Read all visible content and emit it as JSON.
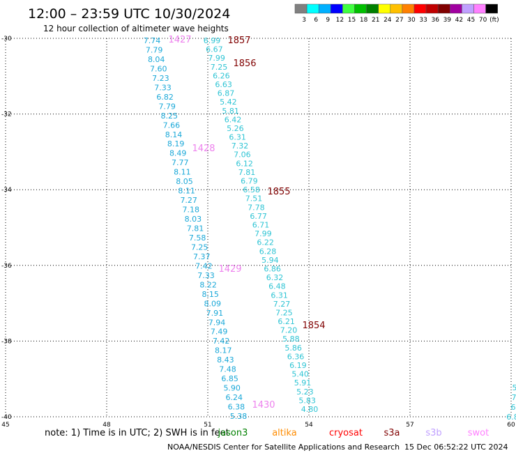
{
  "title": "12:00 – 23:59 UTC 10/30/2024",
  "subtitle": "12 hour collection of altimeter wave heights",
  "color_scale": {
    "unit": "(ft)",
    "colors": [
      "#808080",
      "#00ffff",
      "#00b0ff",
      "#0000ff",
      "#40ff40",
      "#00c000",
      "#008000",
      "#ffff00",
      "#ffc000",
      "#ff8000",
      "#ff0000",
      "#c00000",
      "#800000",
      "#a000a0",
      "#c0a0ff",
      "#ff80ff",
      "#000000"
    ],
    "labels": [
      "3",
      "6",
      "9",
      "12",
      "15",
      "18",
      "21",
      "24",
      "27",
      "30",
      "33",
      "36",
      "39",
      "42",
      "45",
      "70"
    ]
  },
  "map": {
    "x_axis": {
      "min": 45,
      "max": 60,
      "ticks": [
        "45",
        "48",
        "51",
        "54",
        "57",
        "60"
      ]
    },
    "y_axis": {
      "min": -40,
      "max": -30,
      "ticks": [
        "-30",
        "-32",
        "-34",
        "-36",
        "-38",
        "-40"
      ]
    }
  },
  "tracks": [
    {
      "values": [
        "7.74",
        "7.79",
        "8.04",
        "7.60",
        "7.23",
        "7.33",
        "6.82",
        "7.79",
        "8.25",
        "7.66",
        "8.14",
        "8.19",
        "8.49",
        "7.77",
        "8.11",
        "8.05",
        "8.11",
        "7.27",
        "7.18",
        "8.03",
        "7.81",
        "7.58",
        "7.25",
        "7.37",
        "7.42",
        "7.33",
        "8.22",
        "8.15",
        "8.09",
        "7.91",
        "7.94",
        "7.49",
        "7.42",
        "8.17",
        "8.43",
        "7.48",
        "6.85",
        "5.90",
        "6.24",
        "6.38",
        "5.38"
      ]
    },
    {
      "values": [
        "6.99",
        "6.67",
        "7.99",
        "7.25",
        "6.26",
        "6.63",
        "6.87",
        "5.42",
        "5.81",
        "6.42",
        "5.26",
        "6.31",
        "7.32",
        "7.06",
        "6.12",
        "7.81",
        "6.79",
        "6.58",
        "7.51",
        "7.78",
        "6.77",
        "6.71",
        "7.99",
        "6.22",
        "6.28",
        "5.94",
        "6.86",
        "6.32",
        "6.48",
        "6.31",
        "7.27",
        "7.25",
        "6.21",
        "7.20",
        "5.88",
        "5.86",
        "6.36",
        "6.19",
        "5.40",
        "5.91",
        "5.23",
        "5.83",
        "4.80"
      ]
    },
    {
      "values": [
        "5",
        "7",
        "6",
        "6.8"
      ]
    }
  ],
  "time_labels": [
    "1427",
    "1857",
    "1856",
    "1428",
    "1855",
    "1429",
    "1854",
    "1430"
  ],
  "note_text": "note: 1) Time is in UTC; 2) SWH is in feet",
  "satellites": [
    {
      "name": "jason3",
      "color": "#008000"
    },
    {
      "name": "altika",
      "color": "#ff8c00"
    },
    {
      "name": "cryosat",
      "color": "#ff0000"
    },
    {
      "name": "s3a",
      "color": "#800000"
    },
    {
      "name": "s3b",
      "color": "#c0a0ff"
    },
    {
      "name": "swot",
      "color": "#ff80ff"
    }
  ],
  "footer": "NOAA/NESDIS Center for Satellite Applications and Research",
  "timestamp": "15 Dec 06:52:22 UTC 2024"
}
